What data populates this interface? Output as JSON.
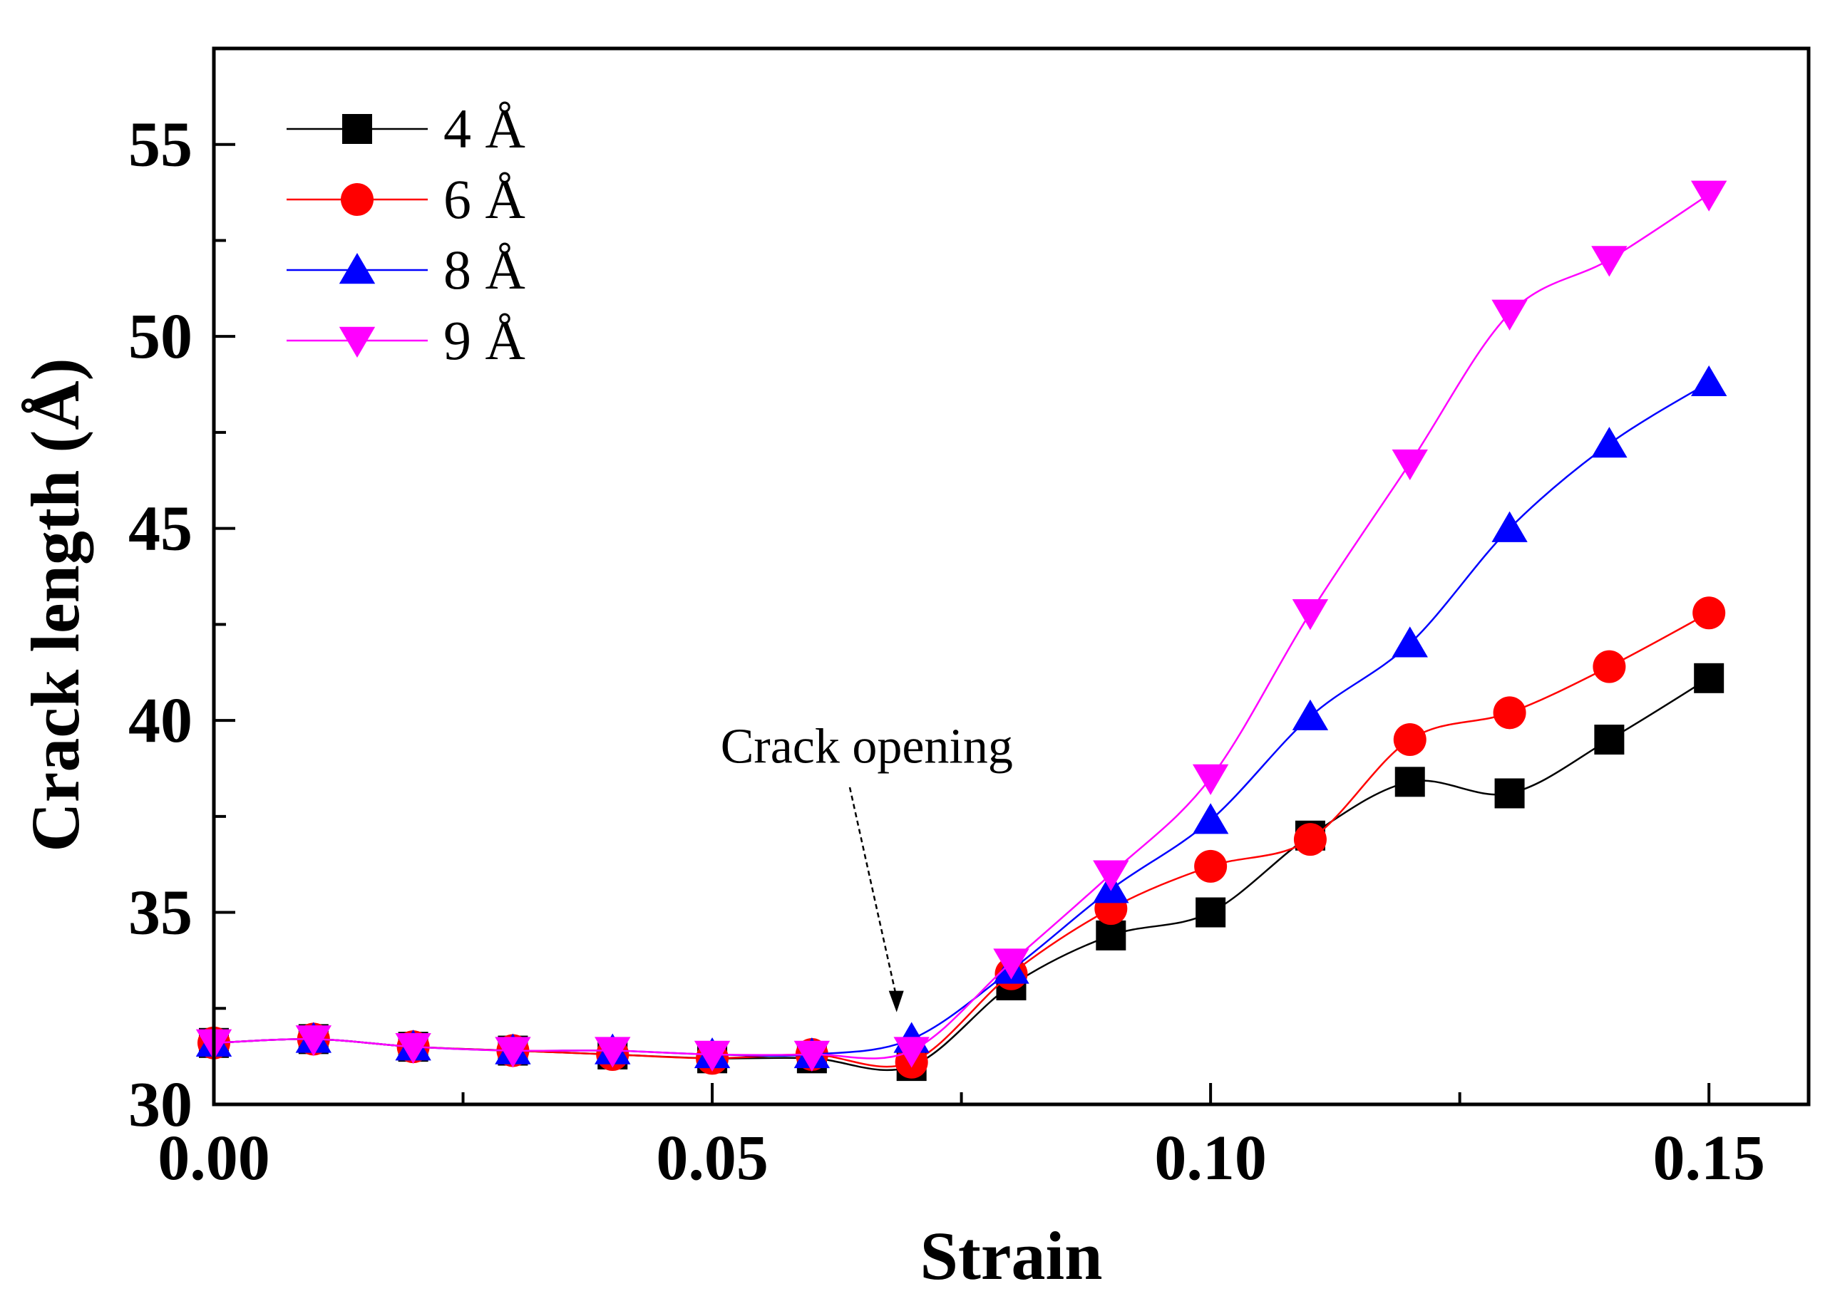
{
  "chart_data": {
    "type": "line",
    "title": "",
    "xlabel": "Strain",
    "ylabel": "Crack length (Å)",
    "xlim": [
      0.0,
      0.16
    ],
    "ylim": [
      30,
      57.5
    ],
    "xticks": [
      0.0,
      0.05,
      0.1,
      0.15
    ],
    "xtick_labels": [
      "0.00",
      "0.05",
      "0.10",
      "0.15"
    ],
    "xminor_step": 0.025,
    "yticks": [
      30,
      35,
      40,
      45,
      50,
      55
    ],
    "ytick_labels": [
      "30",
      "35",
      "40",
      "45",
      "50",
      "55"
    ],
    "yminor_step": 2.5,
    "legend_position": "top-left",
    "x": [
      0.0,
      0.01,
      0.02,
      0.03,
      0.04,
      0.05,
      0.06,
      0.07,
      0.08,
      0.09,
      0.1,
      0.11,
      0.12,
      0.13,
      0.14,
      0.15
    ],
    "series": [
      {
        "name": "4 Å",
        "color": "#000000",
        "marker": "square",
        "values": [
          31.6,
          31.7,
          31.5,
          31.4,
          31.3,
          31.2,
          31.2,
          31.0,
          33.1,
          34.4,
          35.0,
          37.0,
          38.4,
          38.1,
          39.5,
          41.1
        ]
      },
      {
        "name": "6 Å",
        "color": "#ff0000",
        "marker": "circle",
        "values": [
          31.6,
          31.7,
          31.5,
          31.4,
          31.3,
          31.2,
          31.3,
          31.1,
          33.4,
          35.1,
          36.2,
          36.9,
          39.5,
          40.2,
          41.4,
          42.8
        ]
      },
      {
        "name": "8 Å",
        "color": "#0000ff",
        "marker": "triangle-up",
        "values": [
          31.6,
          31.7,
          31.5,
          31.4,
          31.4,
          31.3,
          31.3,
          31.7,
          33.5,
          35.6,
          37.4,
          40.1,
          42.0,
          45.0,
          47.2,
          48.8
        ]
      },
      {
        "name": "9 Å",
        "color": "#ff00ff",
        "marker": "triangle-down",
        "values": [
          31.6,
          31.7,
          31.5,
          31.4,
          31.4,
          31.3,
          31.3,
          31.4,
          33.7,
          36.0,
          38.5,
          42.8,
          46.7,
          50.6,
          52.0,
          53.7
        ]
      }
    ],
    "annotations": [
      {
        "text": "Crack opening",
        "x": 0.0655,
        "y": 38.9,
        "arrow_to": [
          0.0685,
          32.4
        ]
      }
    ]
  }
}
